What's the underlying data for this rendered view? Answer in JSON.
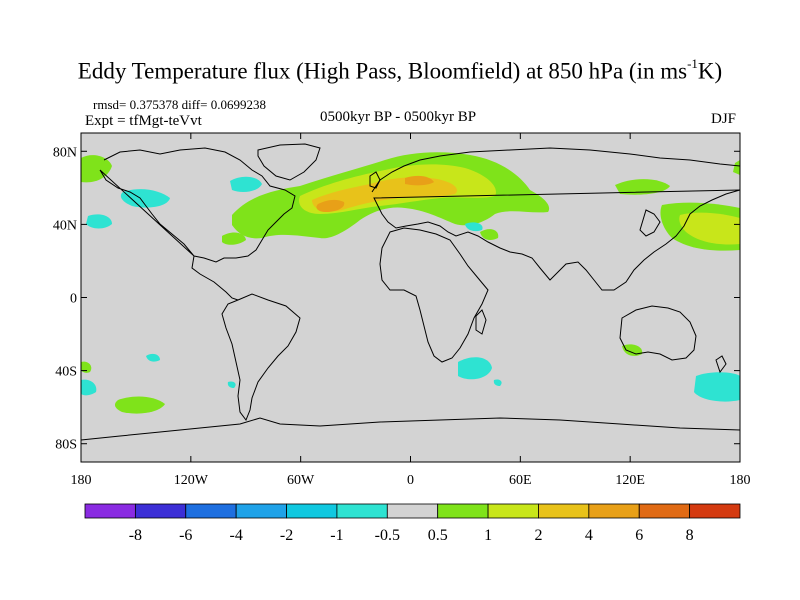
{
  "header": {
    "title": "Eddy Temperature flux (High Pass, Bloomfield) at 850 hPa (in ms",
    "title_sup": "-1",
    "title_end": "K)",
    "stats": "rmsd= 0.375378 diff= 0.0699238",
    "experiment": "Expt = tfMgt-teVvt",
    "period": "0500kyr BP - 0500kyr BP",
    "season": "DJF"
  },
  "axes": {
    "lat_ticks": [
      {
        "label": "80N",
        "lat": 80
      },
      {
        "label": "40N",
        "lat": 40
      },
      {
        "label": "0",
        "lat": 0
      },
      {
        "label": "40S",
        "lat": -40
      },
      {
        "label": "80S",
        "lat": -80
      }
    ],
    "lon_ticks": [
      {
        "label": "180",
        "lon": -180
      },
      {
        "label": "120W",
        "lon": -120
      },
      {
        "label": "60W",
        "lon": -60
      },
      {
        "label": "0",
        "lon": 0
      },
      {
        "label": "60E",
        "lon": 60
      },
      {
        "label": "120E",
        "lon": 120
      },
      {
        "label": "180",
        "lon": 180
      }
    ],
    "lon_range": [
      -180,
      180
    ],
    "lat_range": [
      -90,
      90
    ]
  },
  "colorbar": {
    "labels": [
      "-8",
      "-6",
      "-4",
      "-2",
      "-1",
      "-0.5",
      "0.5",
      "1",
      "2",
      "4",
      "6",
      "8"
    ],
    "colors": [
      "#8a2be2",
      "#3c2fd6",
      "#1e6fe0",
      "#1fa2e8",
      "#10c8e0",
      "#2ee3d2",
      "#d3d3d3",
      "#7fe31a",
      "#c8e61a",
      "#e8c21a",
      "#e8a018",
      "#e06a14",
      "#d43a10"
    ]
  },
  "map": {
    "land_color": "#d3d3d3",
    "coastline_color": "#000000"
  }
}
